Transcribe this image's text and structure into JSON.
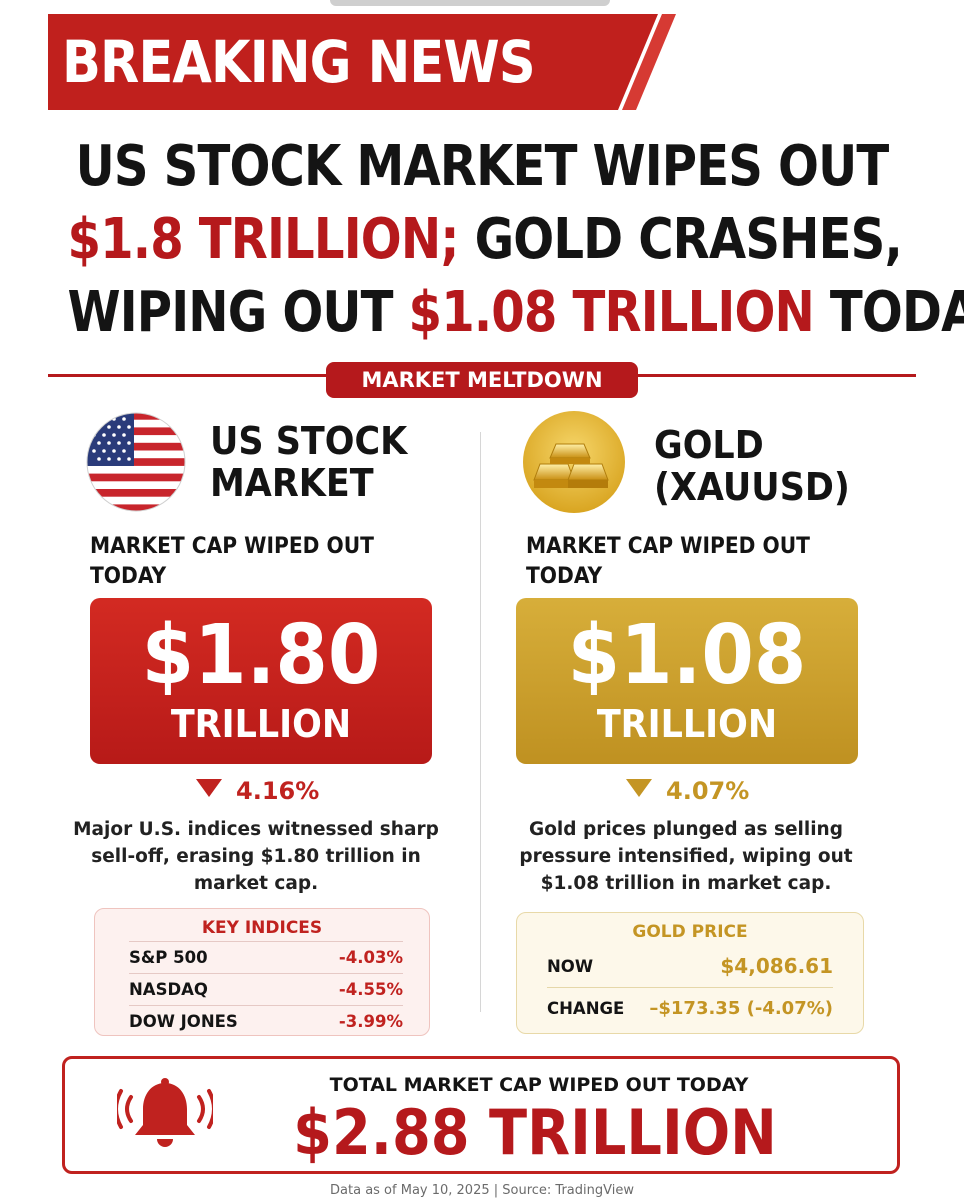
{
  "banner": {
    "text": "BREAKING NEWS"
  },
  "headline": {
    "line1": "US STOCK MARKET WIPES OUT",
    "line2_red": "$1.8 TRILLION;",
    "line2_black": " GOLD CRASHES,",
    "line3_black1": "WIPING OUT ",
    "line3_red": "$1.08 TRILLION",
    "line3_black2": " TODAY"
  },
  "section_label": "MARKET MELTDOWN",
  "stocks": {
    "icon": "us-flag-icon",
    "title_line1": "US STOCK",
    "title_line2": "MARKET",
    "sub_label_line1": "MARKET CAP WIPED OUT",
    "sub_label_line2": "TODAY",
    "value": "$1.80",
    "unit": "TRILLION",
    "change": "4.16%",
    "description": "Major U.S. indices witnessed sharp sell-off, erasing $1.80 trillion in market cap.",
    "indices_title": "KEY INDICES",
    "indices": [
      {
        "name": "S&P 500",
        "change": "-4.03%"
      },
      {
        "name": "NASDAQ",
        "change": "-4.55%"
      },
      {
        "name": "DOW JONES",
        "change": "-3.99%"
      }
    ]
  },
  "gold": {
    "icon": "gold-bars-icon",
    "title_line1": "GOLD",
    "title_line2": "(XAUUSD)",
    "sub_label_line1": "MARKET CAP WIPED OUT",
    "sub_label_line2": "TODAY",
    "value": "$1.08",
    "unit": "TRILLION",
    "change": "4.07%",
    "description": "Gold prices plunged as selling pressure intensified, wiping out $1.08 trillion in market cap.",
    "price_title": "GOLD PRICE",
    "price_rows": [
      {
        "label": "NOW",
        "value": "$4,086.61"
      },
      {
        "label": "CHANGE",
        "value": "–$173.35 (-4.07%)"
      }
    ]
  },
  "total": {
    "icon": "alarm-bell-icon",
    "label": "TOTAL MARKET CAP WIPED OUT TODAY",
    "value": "$2.88 TRILLION"
  },
  "footer": "Data as of May 10, 2025 | Source: TradingView",
  "colors": {
    "red": "#b5191c",
    "gold": "#c49524"
  }
}
